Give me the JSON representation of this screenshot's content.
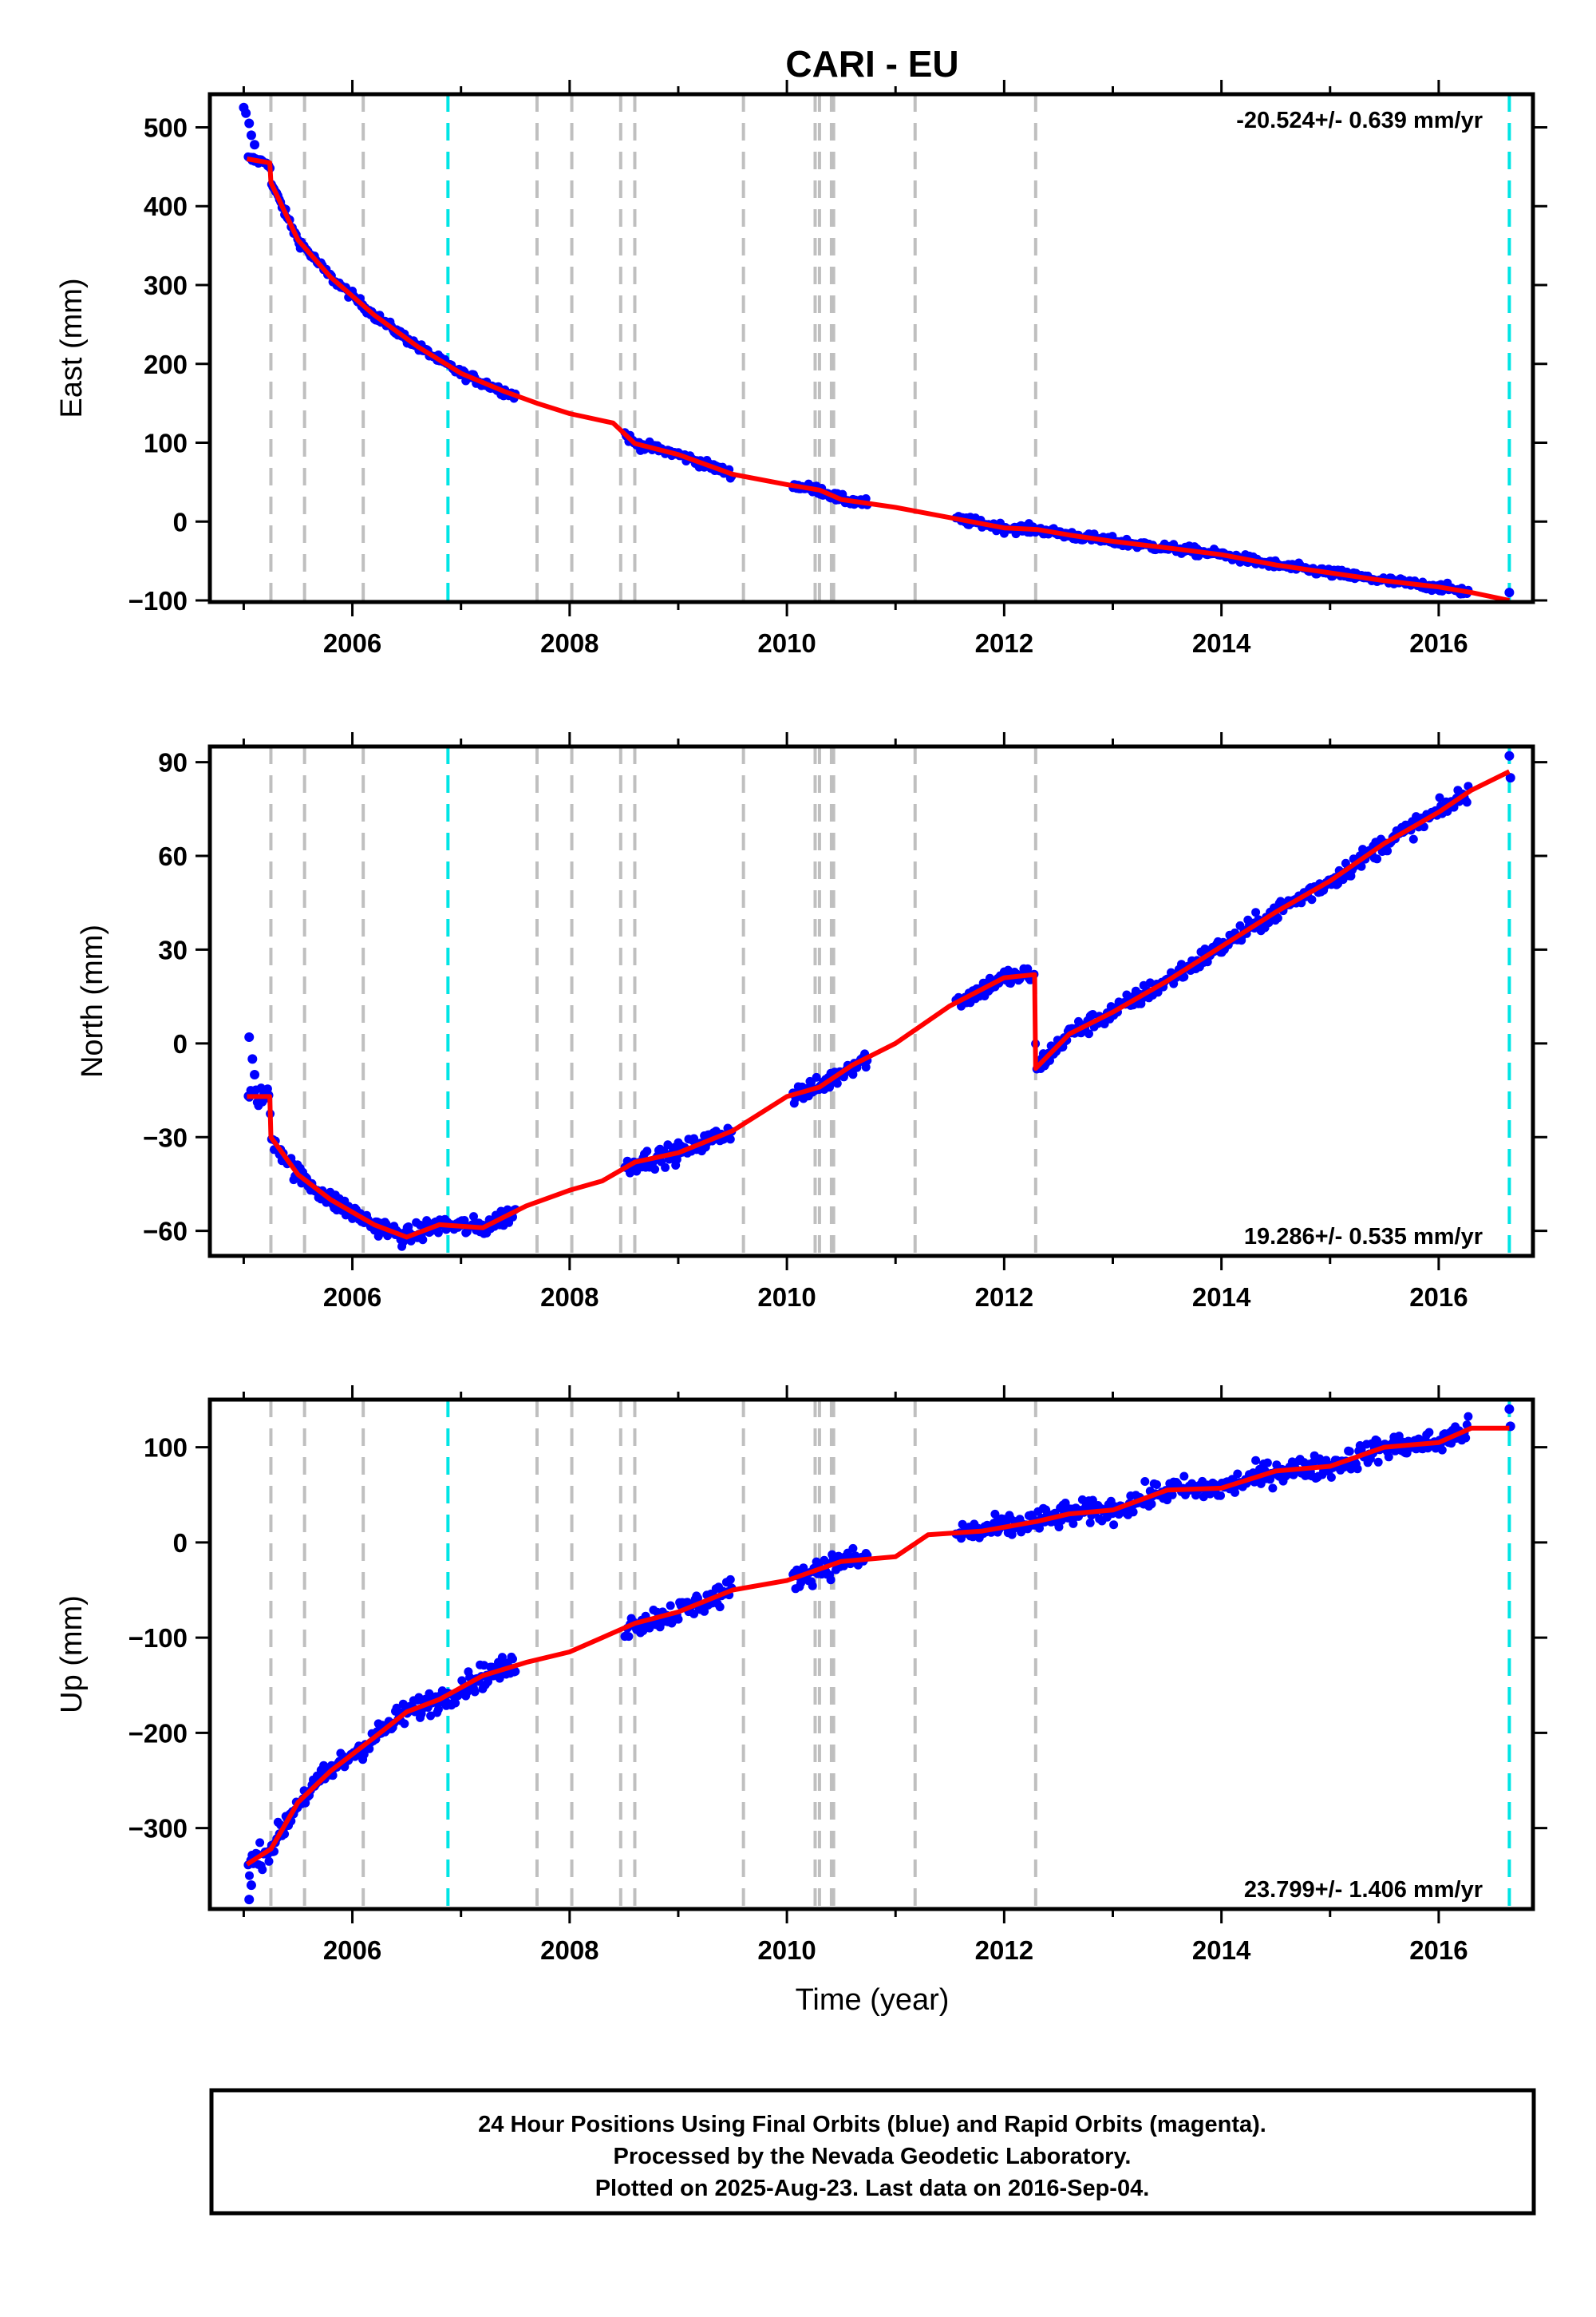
{
  "chart_data": {
    "type": "scatter",
    "title": "CARI - EU",
    "xlabel": "Time (year)",
    "xlim": [
      2004.85,
      2016.75
    ],
    "x_ticks": [
      2006,
      2008,
      2010,
      2012,
      2014,
      2016
    ],
    "x_tick_labels": [
      "2006",
      "2008",
      "2010",
      "2012",
      "2014",
      "2016"
    ],
    "gray_event_lines": [
      2005.25,
      2005.56,
      2006.1,
      2007.7,
      2008.02,
      2008.47,
      2008.6,
      2009.6,
      2010.26,
      2010.3,
      2010.41,
      2010.43,
      2011.18,
      2012.29
    ],
    "cyan_event_lines": [
      2006.88,
      2016.65
    ],
    "series_colors": {
      "final": "#0000ff",
      "rapid": "#ff00ff",
      "model": "#ff0000",
      "gray_line": "#bfbfbf",
      "cyan_line": "#00e5e5"
    },
    "gaps": [
      [
        2007.5,
        2008.5
      ],
      [
        2009.5,
        2010.05
      ],
      [
        2010.75,
        2011.55
      ],
      [
        2016.3,
        2016.62
      ]
    ],
    "panels": [
      {
        "ylabel": "East (mm)",
        "ylim": [
          -102,
          542
        ],
        "y_ticks": [
          500,
          400,
          300,
          200,
          100,
          0,
          -100
        ],
        "y_tick_labels": [
          "500",
          "400",
          "300",
          "200",
          "100",
          "0",
          "−100"
        ],
        "rate": "-20.524+/- 0.639 mm/yr",
        "rate_position": "top-right",
        "noise": 4,
        "model": [
          [
            2005.03,
            460
          ],
          [
            2005.24,
            455
          ],
          [
            2005.25,
            430
          ],
          [
            2005.5,
            357
          ],
          [
            2005.8,
            310
          ],
          [
            2006.2,
            262
          ],
          [
            2006.6,
            222
          ],
          [
            2007.0,
            188
          ],
          [
            2007.4,
            165
          ],
          [
            2007.7,
            150
          ],
          [
            2008.0,
            137
          ],
          [
            2008.4,
            125
          ],
          [
            2008.6,
            99
          ],
          [
            2009.0,
            85
          ],
          [
            2009.5,
            60
          ],
          [
            2010.0,
            47
          ],
          [
            2010.3,
            40
          ],
          [
            2010.5,
            28
          ],
          [
            2011.0,
            18
          ],
          [
            2011.5,
            5
          ],
          [
            2012.0,
            -8
          ],
          [
            2012.3,
            -10
          ],
          [
            2012.6,
            -17
          ],
          [
            2013.0,
            -25
          ],
          [
            2013.6,
            -35
          ],
          [
            2014.0,
            -42
          ],
          [
            2014.5,
            -55
          ],
          [
            2015.0,
            -65
          ],
          [
            2015.5,
            -75
          ],
          [
            2016.0,
            -83
          ],
          [
            2016.3,
            -90
          ],
          [
            2016.65,
            -100
          ]
        ],
        "extra_points": [
          [
            2005.0,
            525
          ],
          [
            2005.02,
            518
          ],
          [
            2005.05,
            505
          ],
          [
            2005.07,
            490
          ],
          [
            2005.1,
            478
          ],
          [
            2016.65,
            -90
          ]
        ]
      },
      {
        "ylabel": "North (mm)",
        "ylim": [
          -68,
          95
        ],
        "y_ticks": [
          90,
          60,
          30,
          0,
          -30,
          -60
        ],
        "y_tick_labels": [
          "90",
          "60",
          "30",
          "0",
          "−30",
          "−60"
        ],
        "rate": "19.286+/- 0.535 mm/yr",
        "rate_position": "bottom-right",
        "noise": 2.2,
        "model": [
          [
            2005.03,
            -17
          ],
          [
            2005.24,
            -17
          ],
          [
            2005.25,
            -30
          ],
          [
            2005.5,
            -42
          ],
          [
            2005.8,
            -50
          ],
          [
            2006.2,
            -58
          ],
          [
            2006.5,
            -62
          ],
          [
            2006.8,
            -58
          ],
          [
            2007.2,
            -59
          ],
          [
            2007.6,
            -52
          ],
          [
            2008.0,
            -47
          ],
          [
            2008.3,
            -44
          ],
          [
            2008.6,
            -38
          ],
          [
            2009.0,
            -35
          ],
          [
            2009.5,
            -28
          ],
          [
            2010.0,
            -17
          ],
          [
            2010.3,
            -14
          ],
          [
            2010.6,
            -7
          ],
          [
            2011.0,
            0
          ],
          [
            2011.5,
            12
          ],
          [
            2012.0,
            21
          ],
          [
            2012.28,
            22
          ],
          [
            2012.29,
            -8
          ],
          [
            2012.6,
            3
          ],
          [
            2013.0,
            10
          ],
          [
            2013.5,
            20
          ],
          [
            2014.0,
            31
          ],
          [
            2014.5,
            42
          ],
          [
            2015.0,
            52
          ],
          [
            2015.5,
            64
          ],
          [
            2016.0,
            74
          ],
          [
            2016.3,
            81
          ],
          [
            2016.65,
            87
          ]
        ],
        "extra_points": [
          [
            2005.05,
            2
          ],
          [
            2005.08,
            -5
          ],
          [
            2005.1,
            -10
          ],
          [
            2016.65,
            92
          ],
          [
            2016.66,
            85
          ]
        ]
      },
      {
        "ylabel": "Up (mm)",
        "ylim": [
          -385,
          150
        ],
        "y_ticks": [
          100,
          0,
          -100,
          -200,
          -300
        ],
        "y_tick_labels": [
          "100",
          "0",
          "−100",
          "−200",
          "−300"
        ],
        "rate": "23.799+/- 1.406 mm/yr",
        "rate_position": "bottom-right",
        "noise": 9,
        "model": [
          [
            2005.03,
            -338
          ],
          [
            2005.25,
            -322
          ],
          [
            2005.5,
            -273
          ],
          [
            2005.8,
            -240
          ],
          [
            2006.2,
            -205
          ],
          [
            2006.5,
            -178
          ],
          [
            2006.8,
            -165
          ],
          [
            2007.2,
            -140
          ],
          [
            2007.6,
            -126
          ],
          [
            2008.0,
            -115
          ],
          [
            2008.3,
            -100
          ],
          [
            2008.6,
            -85
          ],
          [
            2009.0,
            -73
          ],
          [
            2009.5,
            -50
          ],
          [
            2010.0,
            -40
          ],
          [
            2010.5,
            -20
          ],
          [
            2011.0,
            -15
          ],
          [
            2011.3,
            8
          ],
          [
            2011.8,
            12
          ],
          [
            2012.3,
            22
          ],
          [
            2012.6,
            30
          ],
          [
            2013.0,
            34
          ],
          [
            2013.5,
            55
          ],
          [
            2014.0,
            57
          ],
          [
            2014.5,
            75
          ],
          [
            2015.0,
            80
          ],
          [
            2015.5,
            100
          ],
          [
            2016.0,
            105
          ],
          [
            2016.3,
            120
          ],
          [
            2016.65,
            120
          ]
        ],
        "extra_points": [
          [
            2005.05,
            -375
          ],
          [
            2005.07,
            -360
          ],
          [
            2016.65,
            140
          ],
          [
            2016.66,
            122
          ]
        ]
      }
    ]
  },
  "footer": {
    "line1": "24 Hour Positions Using Final Orbits (blue) and Rapid Orbits (magenta).",
    "line2": "Processed by the Nevada Geodetic Laboratory.",
    "line3": "Plotted on 2025-Aug-23. Last data on 2016-Sep-04."
  }
}
